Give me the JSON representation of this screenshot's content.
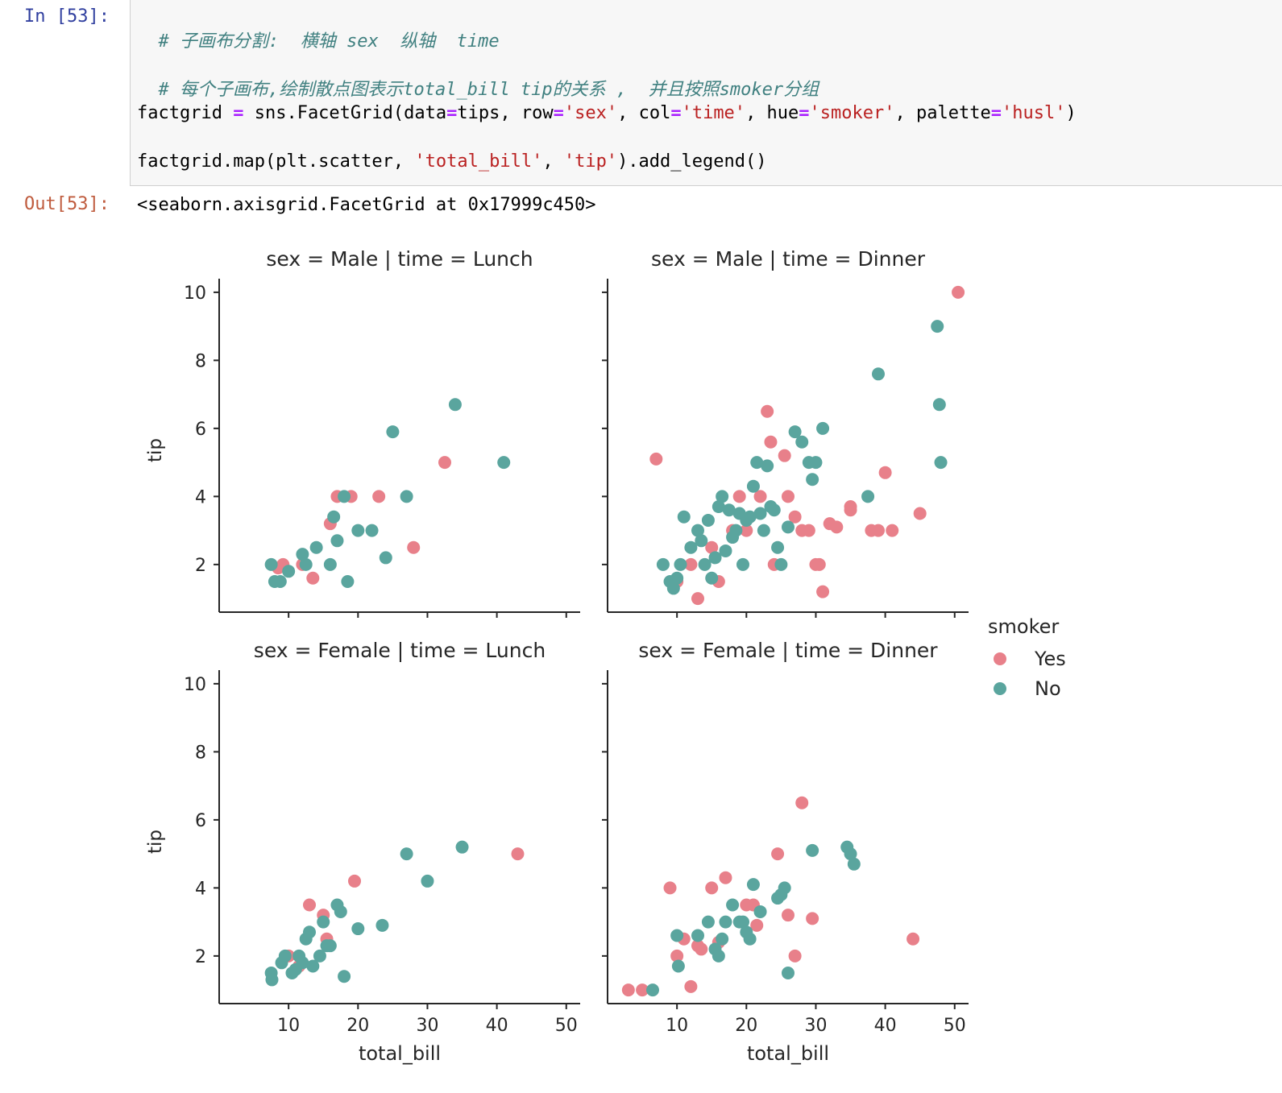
{
  "cell": {
    "in_prompt": "In [53]:",
    "out_prompt": "Out[53]:",
    "code": {
      "line1_comment": "# 子画布分割:  横轴 sex  纵轴  time",
      "line2_comment": "# 每个子画布,绘制散点图表示total_bill tip的关系 ,  并且按照smoker分组",
      "line3_a": "factgrid ",
      "line3_eq1": "=",
      "line3_b": " sns.FacetGrid(data",
      "line3_eq2": "=",
      "line3_c": "tips, row",
      "line3_eq3": "=",
      "line3_s1": "'sex'",
      "line3_d": ", col",
      "line3_eq4": "=",
      "line3_s2": "'time'",
      "line3_e": ", hue",
      "line3_eq5": "=",
      "line3_s3": "'smoker'",
      "line3_f": ", palette",
      "line3_eq6": "=",
      "line3_s4": "'husl'",
      "line3_g": ")",
      "line4_a": "factgrid.map(plt.scatter, ",
      "line4_s1": "'total_bill'",
      "line4_b": ", ",
      "line4_s2": "'tip'",
      "line4_c": ").add_legend()"
    },
    "output_text": "<seaborn.axisgrid.FacetGrid at 0x17999c450>"
  },
  "colors": {
    "yes": "#e8808a",
    "no": "#5aa59e"
  },
  "chart_data": [
    {
      "type": "scatter",
      "title": "sex = Male | time = Lunch",
      "xlabel": "",
      "ylabel": "tip",
      "xlim": [
        0,
        52
      ],
      "ylim": [
        0.6,
        10.4
      ],
      "xticks": [
        10,
        20,
        30,
        40,
        50
      ],
      "yticks": [
        2,
        4,
        6,
        8,
        10
      ],
      "show_xticklabels": false,
      "show_yticklabels": true,
      "series": [
        {
          "name": "Yes",
          "x": [
            8.5,
            9.2,
            12,
            13.5,
            16,
            17,
            19,
            23,
            28,
            32.5
          ],
          "y": [
            1.9,
            2,
            2,
            1.6,
            3.2,
            4,
            4,
            4,
            2.5,
            5
          ]
        },
        {
          "name": "No",
          "x": [
            7.5,
            8,
            8.8,
            10,
            12,
            12.5,
            14,
            16,
            16.5,
            17,
            18,
            18.5,
            20,
            22,
            24,
            25,
            27,
            34,
            41
          ],
          "y": [
            2,
            1.5,
            1.5,
            1.8,
            2.3,
            2,
            2.5,
            2,
            3.4,
            2.7,
            4,
            1.5,
            3,
            3,
            2.2,
            5.9,
            4,
            6.7,
            5
          ]
        }
      ]
    },
    {
      "type": "scatter",
      "title": "sex = Male | time = Dinner",
      "xlabel": "",
      "ylabel": "",
      "xlim": [
        0,
        52
      ],
      "ylim": [
        0.6,
        10.4
      ],
      "xticks": [
        10,
        20,
        30,
        40,
        50
      ],
      "yticks": [
        2,
        4,
        6,
        8,
        10
      ],
      "show_xticklabels": false,
      "show_yticklabels": false,
      "series": [
        {
          "name": "Yes",
          "x": [
            7,
            10,
            12,
            13,
            15,
            16,
            18,
            19,
            20,
            22,
            23,
            23.5,
            24,
            25.5,
            26,
            27,
            28,
            29,
            30,
            30.5,
            31,
            32,
            33,
            35,
            35,
            38,
            39,
            40,
            41,
            45,
            50.5
          ],
          "y": [
            5.1,
            1.5,
            2,
            1,
            2.5,
            1.5,
            3,
            4,
            3,
            4,
            6.5,
            5.6,
            2,
            5.2,
            4,
            3.4,
            3,
            3,
            2,
            2,
            1.2,
            3.2,
            3.1,
            3.6,
            3.7,
            3,
            3,
            4.7,
            3,
            3.5,
            10
          ]
        },
        {
          "name": "No",
          "x": [
            8,
            9,
            9.5,
            10,
            10.5,
            11,
            12,
            13,
            13.5,
            14,
            14.5,
            15,
            15.5,
            16,
            16.5,
            17,
            17.5,
            18,
            18.5,
            19,
            19.5,
            20,
            20.5,
            21,
            21.5,
            22,
            22.5,
            23,
            23.5,
            24,
            24.5,
            25,
            26,
            27,
            28,
            29,
            29.5,
            30,
            31,
            37.5,
            39,
            47.5,
            47.8,
            48
          ],
          "y": [
            2,
            1.5,
            1.3,
            1.6,
            2,
            3.4,
            2.5,
            3,
            2.7,
            2,
            3.3,
            1.6,
            2.2,
            3.7,
            4,
            2.4,
            3.6,
            2.8,
            3,
            3.5,
            2,
            3.3,
            3.4,
            4.3,
            5,
            3.5,
            3,
            4.9,
            3.7,
            3.6,
            2.5,
            2,
            3.1,
            5.9,
            5.6,
            5,
            4.5,
            5,
            6,
            4,
            7.6,
            9,
            6.7,
            5
          ]
        }
      ]
    },
    {
      "type": "scatter",
      "title": "sex = Female | time = Lunch",
      "xlabel": "total_bill",
      "ylabel": "tip",
      "xlim": [
        0,
        52
      ],
      "ylim": [
        0.6,
        10.4
      ],
      "xticks": [
        10,
        20,
        30,
        40,
        50
      ],
      "yticks": [
        2,
        4,
        6,
        8,
        10
      ],
      "show_xticklabels": true,
      "show_yticklabels": true,
      "series": [
        {
          "name": "Yes",
          "x": [
            10,
            11.5,
            13,
            15,
            15.5,
            19.5,
            43
          ],
          "y": [
            2,
            1.7,
            3.5,
            3.2,
            2.5,
            4.2,
            5
          ]
        },
        {
          "name": "No",
          "x": [
            7.5,
            7.6,
            9,
            9.5,
            10.5,
            11,
            11.5,
            12,
            12.5,
            13,
            13.5,
            14.5,
            15,
            15.5,
            16,
            17,
            17.5,
            18,
            20,
            23.5,
            27,
            30,
            35
          ],
          "y": [
            1.5,
            1.3,
            1.8,
            2,
            1.5,
            1.6,
            2,
            1.8,
            2.5,
            2.7,
            1.7,
            2,
            3,
            2.3,
            2.3,
            3.5,
            3.3,
            1.4,
            2.8,
            2.9,
            5,
            4.2,
            5.2
          ]
        }
      ]
    },
    {
      "type": "scatter",
      "title": "sex = Female | time = Dinner",
      "xlabel": "total_bill",
      "ylabel": "",
      "xlim": [
        0,
        52
      ],
      "ylim": [
        0.6,
        10.4
      ],
      "xticks": [
        10,
        20,
        30,
        40,
        50
      ],
      "yticks": [
        2,
        4,
        6,
        8,
        10
      ],
      "show_xticklabels": true,
      "show_yticklabels": false,
      "series": [
        {
          "name": "Yes",
          "x": [
            3,
            5,
            9,
            10,
            11,
            12,
            13,
            13.5,
            15,
            16,
            17,
            20,
            21,
            21.5,
            24.5,
            26,
            27,
            28,
            29.5,
            44
          ],
          "y": [
            1,
            1,
            4,
            2,
            2.5,
            1.1,
            2.3,
            2.2,
            4,
            2.4,
            4.3,
            3.5,
            3.5,
            2.9,
            5,
            3.2,
            2,
            6.5,
            3.1,
            2.5
          ]
        },
        {
          "name": "No",
          "x": [
            6.5,
            10,
            10.2,
            13,
            14.5,
            15.5,
            16,
            16.5,
            17,
            18,
            19,
            19.5,
            20,
            20.5,
            21,
            22,
            24.5,
            25,
            25.5,
            26,
            29.5,
            34.5,
            35,
            35.5
          ],
          "y": [
            1,
            2.6,
            1.7,
            2.6,
            3,
            2.2,
            2,
            2.5,
            3,
            3.5,
            3,
            3,
            2.7,
            2.5,
            4.1,
            3.3,
            3.7,
            3.8,
            4,
            1.5,
            5.1,
            5.2,
            5,
            4.7
          ]
        }
      ]
    }
  ],
  "legend": {
    "title": "smoker",
    "entries": [
      "Yes",
      "No"
    ]
  }
}
